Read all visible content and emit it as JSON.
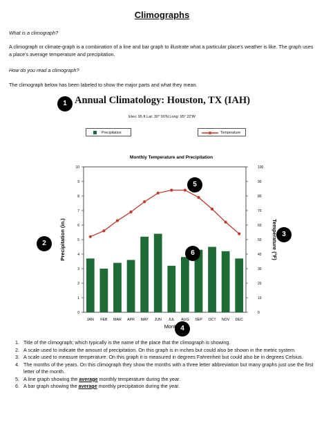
{
  "doc": {
    "title": "Climographs",
    "q1": "What is a climograph?",
    "p1": "A climograph or climate-graph is a combination of a line and bar graph to illustrate what a particular place's weather is like.  The graph uses a place's average temperature and precipitation.",
    "q2": "How do you read a climograph?",
    "p2": "The climograph below has been labeled to show the major parts and what they mean."
  },
  "figure": {
    "title": "Annual Climatology: Houston, TX (IAH)",
    "subtitle": "Elev: 95 ft    Lat: 30° 00'N    Long: 95° 22'W",
    "legend_precip": "Precipitation",
    "legend_temp": "Temperature",
    "markers": [
      "1",
      "2",
      "3",
      "4",
      "5",
      "6"
    ]
  },
  "chart_data": {
    "type": "bar",
    "title": "Monthly Temperature and Precipitation",
    "categories": [
      "JAN",
      "FEB",
      "MAR",
      "APR",
      "MAY",
      "JUN",
      "JUL",
      "AUG",
      "SEP",
      "OCT",
      "NOV",
      "DEC"
    ],
    "xlabel": "Month",
    "ylabel": "Precipitation (in.)",
    "y2label": "Temperature (°F)",
    "ylim": [
      0,
      10
    ],
    "y2lim": [
      0,
      100
    ],
    "yticks": [
      "0",
      "1",
      "2",
      "3",
      "4",
      "5",
      "6",
      "7",
      "8",
      "9",
      "10"
    ],
    "y2ticks": [
      "0",
      "10",
      "20",
      "30",
      "40",
      "50",
      "60",
      "70",
      "80",
      "90",
      "100"
    ],
    "series": [
      {
        "name": "Precipitation",
        "type": "bar",
        "axis": "left",
        "color": "#1e6b35",
        "values": [
          3.7,
          3.0,
          3.4,
          3.6,
          5.2,
          5.4,
          3.2,
          3.8,
          4.3,
          4.5,
          4.2,
          3.7
        ]
      },
      {
        "name": "Temperature",
        "type": "line",
        "axis": "right",
        "color": "#c0392b",
        "values": [
          52,
          56,
          63,
          69,
          76,
          82,
          84,
          84,
          79,
          71,
          62,
          54
        ]
      }
    ],
    "grid": false
  },
  "notes": {
    "items": [
      "Title of the climograph; which typically is the name of the place that the climograph is showing.",
      "A scale used to indicate the amount of precipitation.  On this graph is in inches but could also be shown in the metric system.",
      "A scale used to measure temperature.  On this graph it is measured in degrees Fahrenheit but could also be in degrees Celsius.",
      "The months of the years.  On this climograph they show the months with a three letter abbreviation but many graphs just use the first letter of the month."
    ],
    "item5_pre": "A line graph showing the ",
    "item5_em": "average",
    "item5_post": " monthly temperature during the year.",
    "item6_pre": "A bar graph showing the ",
    "item6_em": "average",
    "item6_post": " monthly precipitation during the year."
  }
}
